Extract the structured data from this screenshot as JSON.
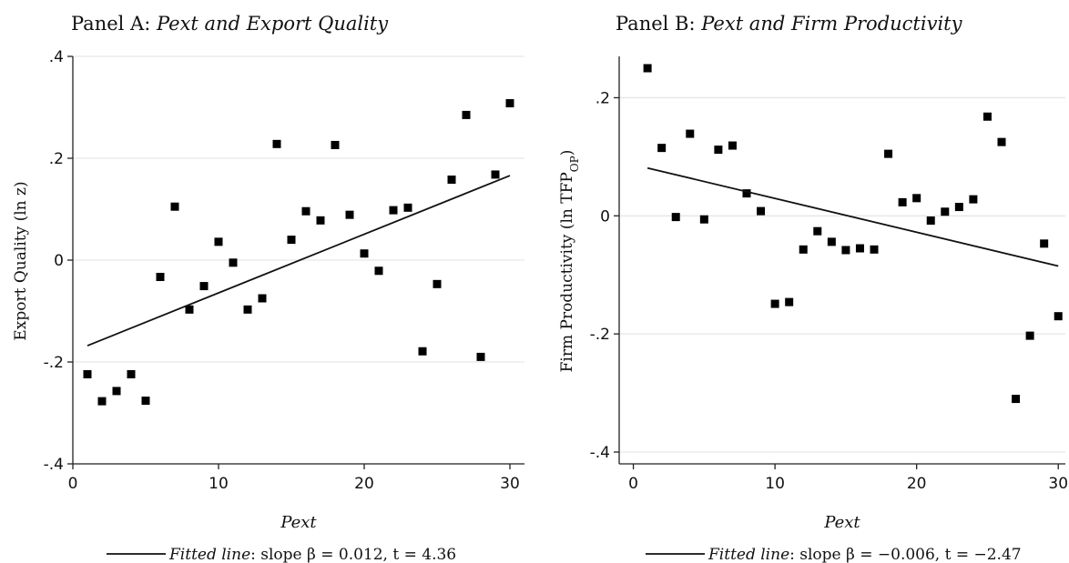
{
  "chart_data": [
    {
      "type": "scatter",
      "title_prefix": "Panel A: ",
      "title_main": "Pext  and Export Quality",
      "ylabel": "Export Quality (ln z)",
      "xlabel": "Pext",
      "xlim": [
        0,
        31
      ],
      "ylim": [
        -0.4,
        0.4
      ],
      "xticks": [
        0,
        10,
        20,
        30
      ],
      "xtick_labels": [
        "0",
        "10",
        "20",
        "30"
      ],
      "yticks": [
        -0.4,
        -0.2,
        0,
        0.2,
        0.4
      ],
      "ytick_labels": [
        "-.4",
        "-.2",
        "0",
        ".2",
        ".4"
      ],
      "grid": true,
      "legend_position": "bottom",
      "x": [
        1,
        2,
        3,
        4,
        5,
        6,
        7,
        8,
        9,
        10,
        11,
        12,
        13,
        14,
        15,
        16,
        17,
        18,
        19,
        20,
        21,
        22,
        23,
        24,
        25,
        26,
        27,
        28,
        29,
        30
      ],
      "y": [
        -0.224,
        -0.277,
        -0.257,
        -0.224,
        -0.276,
        -0.033,
        0.105,
        -0.097,
        -0.051,
        0.036,
        -0.005,
        -0.097,
        -0.075,
        0.228,
        0.04,
        0.096,
        0.078,
        0.226,
        0.089,
        0.013,
        -0.021,
        0.098,
        0.103,
        -0.179,
        -0.047,
        0.158,
        0.285,
        -0.19,
        0.168,
        0.308
      ],
      "fit": {
        "x": [
          1,
          30
        ],
        "y": [
          -0.168,
          0.166
        ]
      },
      "legend_label": "Fitted line",
      "legend_text": ": slope β = 0.012, t = 4.36"
    },
    {
      "type": "scatter",
      "title_prefix": "Panel B: ",
      "title_main": "Pext  and Firm Productivity",
      "ylabel": "Firm Productivity (ln TFP",
      "ylabel_sub": "OP",
      "ylabel_close": ")",
      "xlabel": "Pext",
      "xlim": [
        -1,
        30.5
      ],
      "ylim": [
        -0.42,
        0.27
      ],
      "xticks": [
        0,
        10,
        20,
        30
      ],
      "xtick_labels": [
        "0",
        "10",
        "20",
        "30"
      ],
      "yticks": [
        -0.4,
        -0.2,
        0,
        0.2
      ],
      "ytick_labels": [
        "-.4",
        "-.2",
        "0",
        ".2"
      ],
      "grid": true,
      "legend_position": "bottom",
      "x": [
        1,
        2,
        3,
        4,
        5,
        6,
        7,
        8,
        9,
        10,
        11,
        12,
        13,
        14,
        15,
        16,
        17,
        18,
        19,
        20,
        21,
        22,
        23,
        24,
        25,
        26,
        27,
        28,
        29,
        30
      ],
      "y": [
        0.25,
        0.115,
        -0.002,
        0.139,
        -0.006,
        0.112,
        0.119,
        0.038,
        0.008,
        -0.149,
        -0.146,
        -0.057,
        -0.026,
        -0.044,
        -0.058,
        -0.055,
        -0.057,
        0.105,
        0.023,
        0.03,
        -0.008,
        0.007,
        0.015,
        0.028,
        0.168,
        0.125,
        -0.31,
        -0.203,
        -0.047,
        -0.17
      ],
      "fit": {
        "x": [
          1,
          30
        ],
        "y": [
          0.081,
          -0.085
        ]
      },
      "legend_label": "Fitted line",
      "legend_text": ": slope β = −0.006, t = −2.47"
    }
  ]
}
